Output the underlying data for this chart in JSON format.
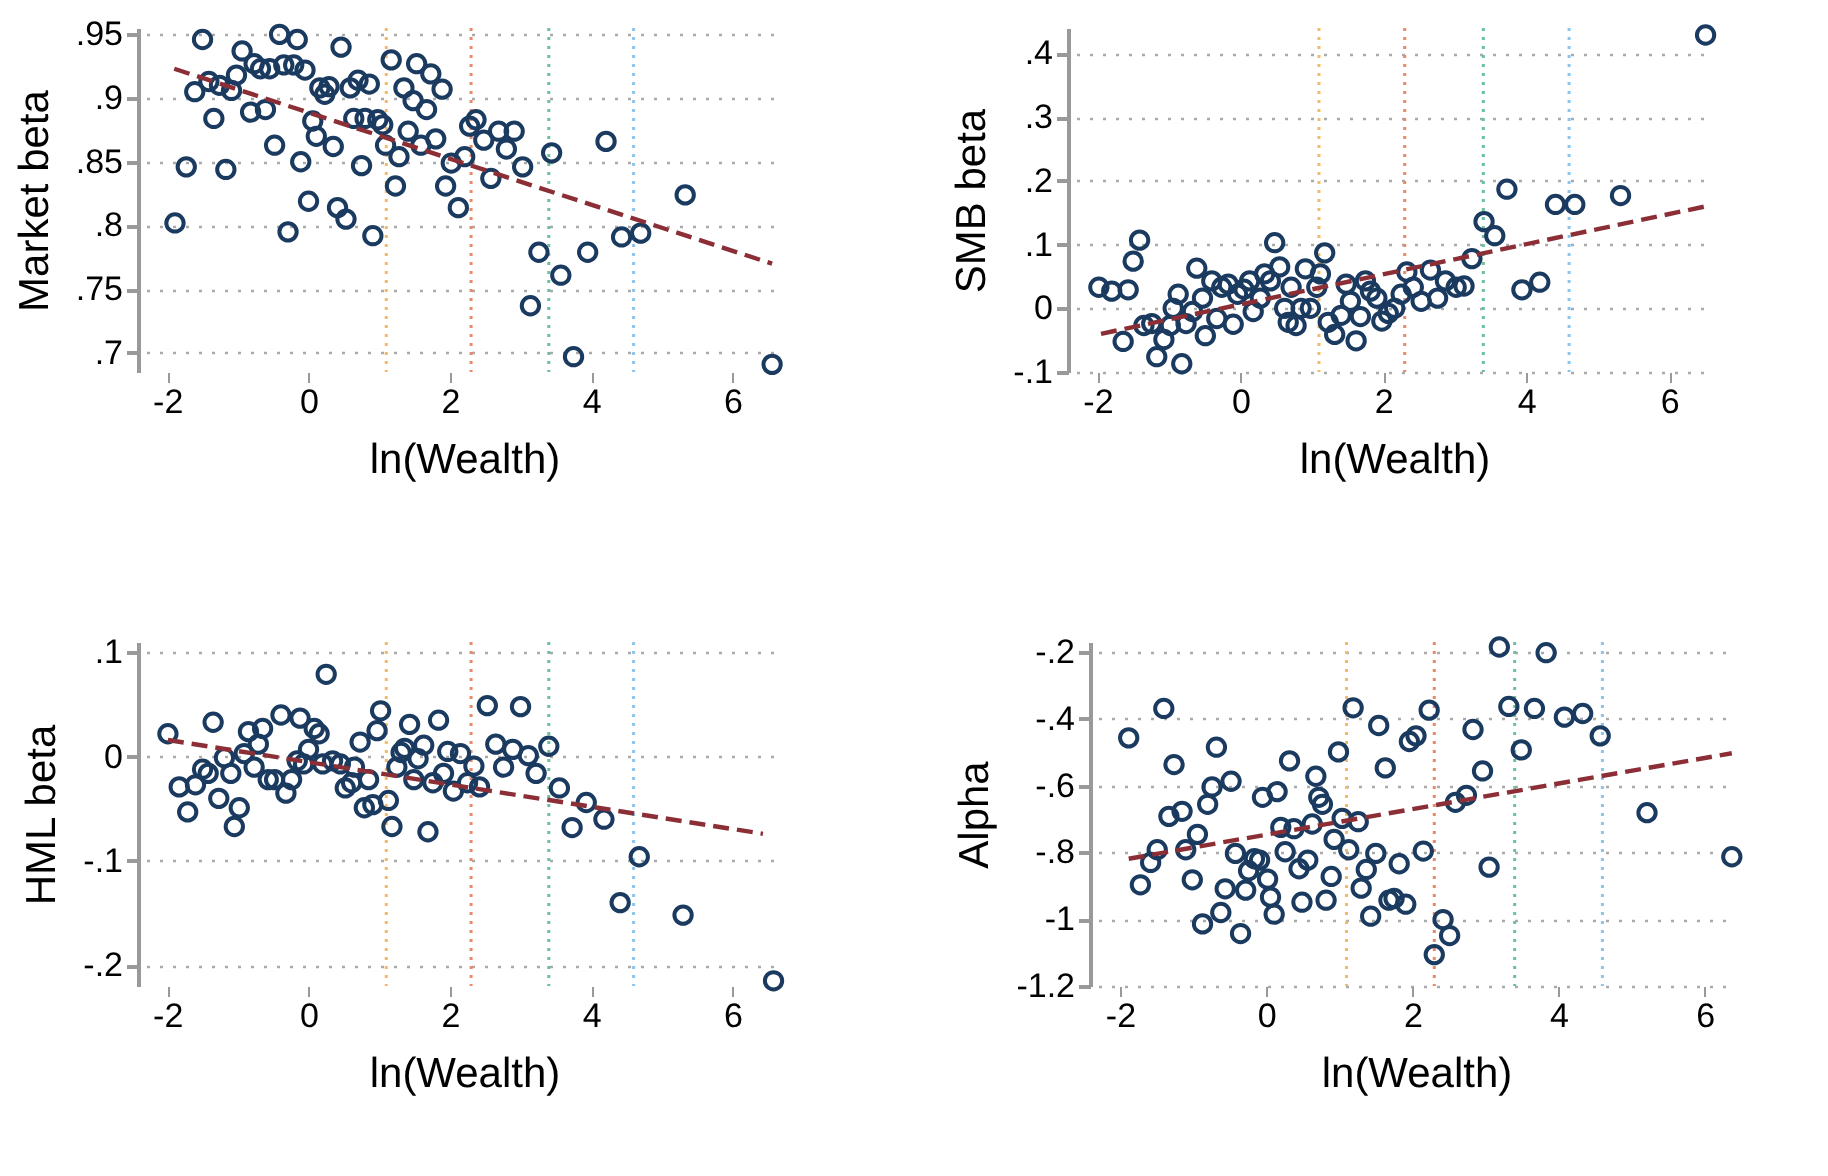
{
  "chart_data": [
    {
      "type": "scatter",
      "ylabel": "Market beta",
      "xlabel": "ln(Wealth)",
      "xlim": [
        -2.3,
        6.7
      ],
      "xticks": [
        -2,
        0,
        2,
        4,
        6
      ],
      "ylim": [
        0.685,
        0.955
      ],
      "yticks": [
        {
          "value": 0.7,
          "label": ".7"
        },
        {
          "value": 0.75,
          "label": ".75"
        },
        {
          "value": 0.8,
          "label": ".8"
        },
        {
          "value": 0.85,
          "label": ".85"
        },
        {
          "value": 0.9,
          "label": ".9"
        },
        {
          "value": 0.95,
          "label": ".95"
        }
      ],
      "grid": "y",
      "marker": "circle",
      "legend": false,
      "ref_lines": [
        {
          "axis": "x",
          "value": 1.1,
          "color": "#f5b96a",
          "line_style": "dotted"
        },
        {
          "axis": "x",
          "value": 2.3,
          "color": "#e8896a",
          "line_style": "dotted"
        },
        {
          "axis": "x",
          "value": 3.4,
          "color": "#6cc0a0",
          "line_style": "dotted"
        },
        {
          "axis": "x",
          "value": 4.6,
          "color": "#8cc4ec",
          "line_style": "dotted"
        }
      ],
      "series": [
        {
          "color": "#1a3a5f",
          "x": [
            -1.89,
            -1.73,
            -1.61,
            -1.5,
            -1.41,
            -1.34,
            -1.26,
            -1.17,
            -1.09,
            -1.02,
            -0.94,
            -0.82,
            -0.77,
            -0.68,
            -0.61,
            -0.55,
            -0.48,
            -0.41,
            -0.35,
            -0.29,
            -0.21,
            -0.16,
            -0.11,
            -0.05,
            0.0,
            0.06,
            0.11,
            0.16,
            0.23,
            0.29,
            0.35,
            0.41,
            0.46,
            0.53,
            0.59,
            0.64,
            0.7,
            0.75,
            0.8,
            0.86,
            0.91,
            0.98,
            1.05,
            1.09,
            1.17,
            1.23,
            1.28,
            1.35,
            1.41,
            1.48,
            1.53,
            1.59,
            1.67,
            1.73,
            1.8,
            1.89,
            1.94,
            2.02,
            2.12,
            2.21,
            2.28,
            2.37,
            2.48,
            2.58,
            2.69,
            2.8,
            2.91,
            3.03,
            3.14,
            3.26,
            3.44,
            3.57,
            3.75,
            3.95,
            4.21,
            4.43,
            4.7,
            5.33,
            6.56
          ],
          "values": [
            0.802,
            0.846,
            0.905,
            0.946,
            0.913,
            0.884,
            0.91,
            0.844,
            0.906,
            0.918,
            0.937,
            0.889,
            0.927,
            0.923,
            0.891,
            0.923,
            0.863,
            0.95,
            0.926,
            0.795,
            0.926,
            0.946,
            0.85,
            0.922,
            0.819,
            0.882,
            0.87,
            0.908,
            0.903,
            0.909,
            0.862,
            0.814,
            0.94,
            0.805,
            0.908,
            0.884,
            0.914,
            0.847,
            0.884,
            0.911,
            0.792,
            0.883,
            0.879,
            0.863,
            0.93,
            0.831,
            0.854,
            0.908,
            0.874,
            0.898,
            0.927,
            0.863,
            0.891,
            0.919,
            0.868,
            0.907,
            0.831,
            0.849,
            0.814,
            0.854,
            0.878,
            0.883,
            0.867,
            0.837,
            0.874,
            0.86,
            0.874,
            0.846,
            0.737,
            0.779,
            0.857,
            0.761,
            0.697,
            0.779,
            0.866,
            0.791,
            0.794,
            0.824,
            0.691
          ]
        },
        {
          "type": "line",
          "marker": "none",
          "color": "#8b2e35",
          "line_style": "dashed",
          "x": [
            -1.9,
            6.56
          ],
          "values": [
            0.923,
            0.77
          ]
        }
      ]
    },
    {
      "type": "scatter",
      "ylabel": "SMB beta",
      "xlabel": "ln(Wealth)",
      "xlim": [
        -2.3,
        6.6
      ],
      "xticks": [
        -2,
        0,
        2,
        4,
        6
      ],
      "ylim": [
        -0.1,
        0.44
      ],
      "yticks": [
        {
          "value": -0.1,
          "label": "-.1"
        },
        0,
        {
          "value": 0.1,
          "label": ".1"
        },
        {
          "value": 0.2,
          "label": ".2"
        },
        {
          "value": 0.3,
          "label": ".3"
        },
        {
          "value": 0.4,
          "label": ".4"
        }
      ],
      "grid": "y",
      "marker": "circle",
      "legend": false,
      "ref_lines": [
        {
          "axis": "x",
          "value": 1.1,
          "color": "#f5b96a",
          "line_style": "dotted"
        },
        {
          "axis": "x",
          "value": 2.3,
          "color": "#e8896a",
          "line_style": "dotted"
        },
        {
          "axis": "x",
          "value": 3.4,
          "color": "#6cc0a0",
          "line_style": "dotted"
        },
        {
          "axis": "x",
          "value": 4.6,
          "color": "#8cc4ec",
          "line_style": "dotted"
        }
      ],
      "series": [
        {
          "color": "#1a3a5f",
          "x": [
            -1.98,
            -1.8,
            -1.64,
            -1.57,
            -1.5,
            -1.41,
            -1.35,
            -1.24,
            -1.17,
            -1.07,
            -0.98,
            -0.94,
            -0.87,
            -0.82,
            -0.76,
            -0.67,
            -0.61,
            -0.53,
            -0.49,
            -0.4,
            -0.33,
            -0.26,
            -0.17,
            -0.1,
            -0.04,
            0.05,
            0.13,
            0.18,
            0.28,
            0.34,
            0.42,
            0.48,
            0.55,
            0.62,
            0.67,
            0.71,
            0.78,
            0.85,
            0.91,
            0.98,
            1.07,
            1.12,
            1.18,
            1.23,
            1.32,
            1.41,
            1.48,
            1.54,
            1.62,
            1.68,
            1.75,
            1.82,
            1.91,
            1.98,
            2.07,
            2.16,
            2.25,
            2.33,
            2.42,
            2.53,
            2.66,
            2.76,
            2.87,
            3.02,
            3.13,
            3.24,
            3.41,
            3.56,
            3.73,
            3.94,
            4.19,
            4.41,
            4.68,
            5.32,
            6.51
          ],
          "values": [
            0.033,
            0.027,
            -0.052,
            0.029,
            0.074,
            0.107,
            -0.027,
            -0.024,
            -0.076,
            -0.049,
            -0.027,
            0.0,
            0.022,
            -0.087,
            -0.024,
            -0.005,
            0.063,
            0.016,
            -0.043,
            0.043,
            -0.016,
            0.033,
            0.038,
            -0.025,
            0.022,
            0.03,
            0.043,
            -0.005,
            0.016,
            0.054,
            0.043,
            0.103,
            0.065,
            0.0,
            -0.022,
            0.033,
            -0.027,
            0.0,
            0.062,
            0.0,
            0.033,
            0.054,
            0.087,
            -0.022,
            -0.041,
            -0.011,
            0.038,
            0.011,
            -0.051,
            -0.013,
            0.043,
            0.027,
            0.016,
            -0.02,
            -0.008,
            0.0,
            0.022,
            0.057,
            0.033,
            0.011,
            0.06,
            0.016,
            0.043,
            0.033,
            0.035,
            0.078,
            0.136,
            0.114,
            0.187,
            0.029,
            0.041,
            0.163,
            0.163,
            0.177,
            0.429
          ]
        },
        {
          "type": "line",
          "marker": "none",
          "color": "#8b2e35",
          "line_style": "dashed",
          "x": [
            -1.95,
            6.51
          ],
          "values": [
            -0.04,
            0.16
          ]
        }
      ]
    },
    {
      "type": "scatter",
      "ylabel": "HML beta",
      "xlabel": "ln(Wealth)",
      "xlim": [
        -2.3,
        6.7
      ],
      "xticks": [
        -2,
        0,
        2,
        4,
        6
      ],
      "ylim": [
        -0.22,
        0.11
      ],
      "yticks": [
        {
          "value": -0.2,
          "label": "-.2"
        },
        {
          "value": -0.1,
          "label": "-.1"
        },
        0,
        {
          "value": 0.1,
          "label": ".1"
        }
      ],
      "grid": "y",
      "marker": "circle",
      "legend": false,
      "ref_lines": [
        {
          "axis": "x",
          "value": 1.1,
          "color": "#f5b96a",
          "line_style": "dotted"
        },
        {
          "axis": "x",
          "value": 2.3,
          "color": "#e8896a",
          "line_style": "dotted"
        },
        {
          "axis": "x",
          "value": 3.4,
          "color": "#6cc0a0",
          "line_style": "dotted"
        },
        {
          "axis": "x",
          "value": 4.6,
          "color": "#8cc4ec",
          "line_style": "dotted"
        }
      ],
      "series": [
        {
          "color": "#1a3a5f",
          "x": [
            -1.99,
            -1.83,
            -1.71,
            -1.6,
            -1.5,
            -1.42,
            -1.35,
            -1.27,
            -1.19,
            -1.1,
            -1.05,
            -0.98,
            -0.91,
            -0.85,
            -0.77,
            -0.71,
            -0.65,
            -0.57,
            -0.48,
            -0.39,
            -0.32,
            -0.24,
            -0.16,
            -0.12,
            -0.07,
            0.0,
            0.08,
            0.15,
            0.2,
            0.25,
            0.34,
            0.45,
            0.52,
            0.61,
            0.65,
            0.73,
            0.79,
            0.85,
            0.91,
            0.97,
            1.02,
            1.13,
            1.18,
            1.25,
            1.31,
            1.36,
            1.43,
            1.49,
            1.55,
            1.63,
            1.69,
            1.76,
            1.84,
            1.91,
            1.97,
            2.05,
            2.15,
            2.25,
            2.34,
            2.42,
            2.53,
            2.65,
            2.76,
            2.89,
            3.0,
            3.11,
            3.22,
            3.4,
            3.55,
            3.73,
            3.93,
            4.18,
            4.41,
            4.68,
            5.3,
            6.58
          ],
          "values": [
            0.022,
            -0.029,
            -0.053,
            -0.027,
            -0.012,
            -0.016,
            0.033,
            -0.04,
            -0.001,
            -0.016,
            -0.067,
            -0.049,
            0.003,
            0.024,
            -0.01,
            0.012,
            0.027,
            -0.022,
            -0.022,
            0.04,
            -0.035,
            -0.022,
            -0.004,
            0.037,
            -0.007,
            0.007,
            0.027,
            0.022,
            -0.007,
            0.079,
            -0.004,
            -0.007,
            -0.03,
            -0.025,
            -0.01,
            0.014,
            -0.049,
            -0.022,
            -0.046,
            0.025,
            0.044,
            -0.042,
            -0.067,
            -0.01,
            0.004,
            0.008,
            0.031,
            -0.022,
            -0.002,
            0.011,
            -0.072,
            -0.025,
            0.035,
            -0.016,
            0.005,
            -0.033,
            0.003,
            -0.025,
            -0.009,
            -0.029,
            0.049,
            0.012,
            -0.01,
            0.007,
            0.048,
            0.001,
            -0.016,
            0.01,
            -0.03,
            -0.068,
            -0.044,
            -0.06,
            -0.14,
            -0.096,
            -0.152,
            -0.215
          ]
        },
        {
          "type": "line",
          "marker": "none",
          "color": "#8b2e35",
          "line_style": "dashed",
          "x": [
            -1.99,
            6.43
          ],
          "values": [
            0.016,
            -0.074
          ]
        }
      ]
    },
    {
      "type": "scatter",
      "ylabel": "Alpha",
      "xlabel": "ln(Wealth)",
      "xlim": [
        -2.3,
        6.4
      ],
      "xticks": [
        -2,
        0,
        2,
        4,
        6
      ],
      "ylim": [
        -1.2,
        -0.17
      ],
      "yticks": [
        -1.2,
        -1,
        {
          "value": -0.8,
          "label": "-.8"
        },
        {
          "value": -0.6,
          "label": "-.6"
        },
        {
          "value": -0.4,
          "label": "-.4"
        },
        {
          "value": -0.2,
          "label": "-.2"
        }
      ],
      "grid": "y",
      "marker": "circle",
      "legend": false,
      "ref_lines": [
        {
          "axis": "x",
          "value": 1.1,
          "color": "#f5b96a",
          "line_style": "dotted"
        },
        {
          "axis": "x",
          "value": 2.3,
          "color": "#e8896a",
          "line_style": "dotted"
        },
        {
          "axis": "x",
          "value": 3.4,
          "color": "#6cc0a0",
          "line_style": "dotted"
        },
        {
          "axis": "x",
          "value": 4.6,
          "color": "#8cc4ec",
          "line_style": "dotted"
        }
      ],
      "series": [
        {
          "color": "#1a3a5f",
          "x": [
            -1.88,
            -1.72,
            -1.58,
            -1.49,
            -1.4,
            -1.33,
            -1.26,
            -1.15,
            -1.1,
            -1.01,
            -0.94,
            -0.87,
            -0.8,
            -0.74,
            -0.68,
            -0.62,
            -0.56,
            -0.48,
            -0.42,
            -0.35,
            -0.28,
            -0.24,
            -0.16,
            -0.09,
            -0.05,
            0.02,
            0.06,
            0.11,
            0.15,
            0.2,
            0.26,
            0.32,
            0.38,
            0.45,
            0.49,
            0.57,
            0.63,
            0.68,
            0.72,
            0.77,
            0.82,
            0.89,
            0.93,
            0.99,
            1.04,
            1.13,
            1.19,
            1.26,
            1.3,
            1.37,
            1.43,
            1.5,
            1.54,
            1.63,
            1.68,
            1.75,
            1.82,
            1.91,
            1.96,
            2.05,
            2.15,
            2.23,
            2.3,
            2.42,
            2.51,
            2.59,
            2.74,
            2.83,
            2.96,
            3.05,
            3.19,
            3.32,
            3.49,
            3.67,
            3.83,
            4.08,
            4.33,
            4.57,
            5.21,
            6.37
          ],
          "values": [
            -0.457,
            -0.897,
            -0.83,
            -0.792,
            -0.369,
            -0.692,
            -0.537,
            -0.677,
            -0.792,
            -0.882,
            -0.746,
            -1.014,
            -0.656,
            -0.604,
            -0.485,
            -0.98,
            -0.909,
            -0.587,
            -0.803,
            -1.043,
            -0.913,
            -0.855,
            -0.819,
            -0.823,
            -0.635,
            -0.88,
            -0.934,
            -0.985,
            -0.618,
            -0.725,
            -0.798,
            -0.526,
            -0.729,
            -0.849,
            -0.949,
            -0.823,
            -0.715,
            -0.572,
            -0.635,
            -0.656,
            -0.943,
            -0.872,
            -0.761,
            -0.499,
            -0.698,
            -0.792,
            -0.367,
            -0.708,
            -0.907,
            -0.851,
            -0.991,
            -0.803,
            -0.42,
            -0.547,
            -0.943,
            -0.938,
            -0.834,
            -0.955,
            -0.468,
            -0.451,
            -0.796,
            -0.374,
            -1.106,
            -1.001,
            -1.049,
            -0.65,
            -0.629,
            -0.432,
            -0.556,
            -0.844,
            -0.185,
            -0.363,
            -0.493,
            -0.369,
            -0.202,
            -0.395,
            -0.384,
            -0.451,
            -0.681,
            -0.813
          ]
        },
        {
          "type": "line",
          "marker": "none",
          "color": "#8b2e35",
          "line_style": "dashed",
          "x": [
            -1.88,
            6.37
          ],
          "values": [
            -0.819,
            -0.503
          ]
        }
      ]
    }
  ]
}
